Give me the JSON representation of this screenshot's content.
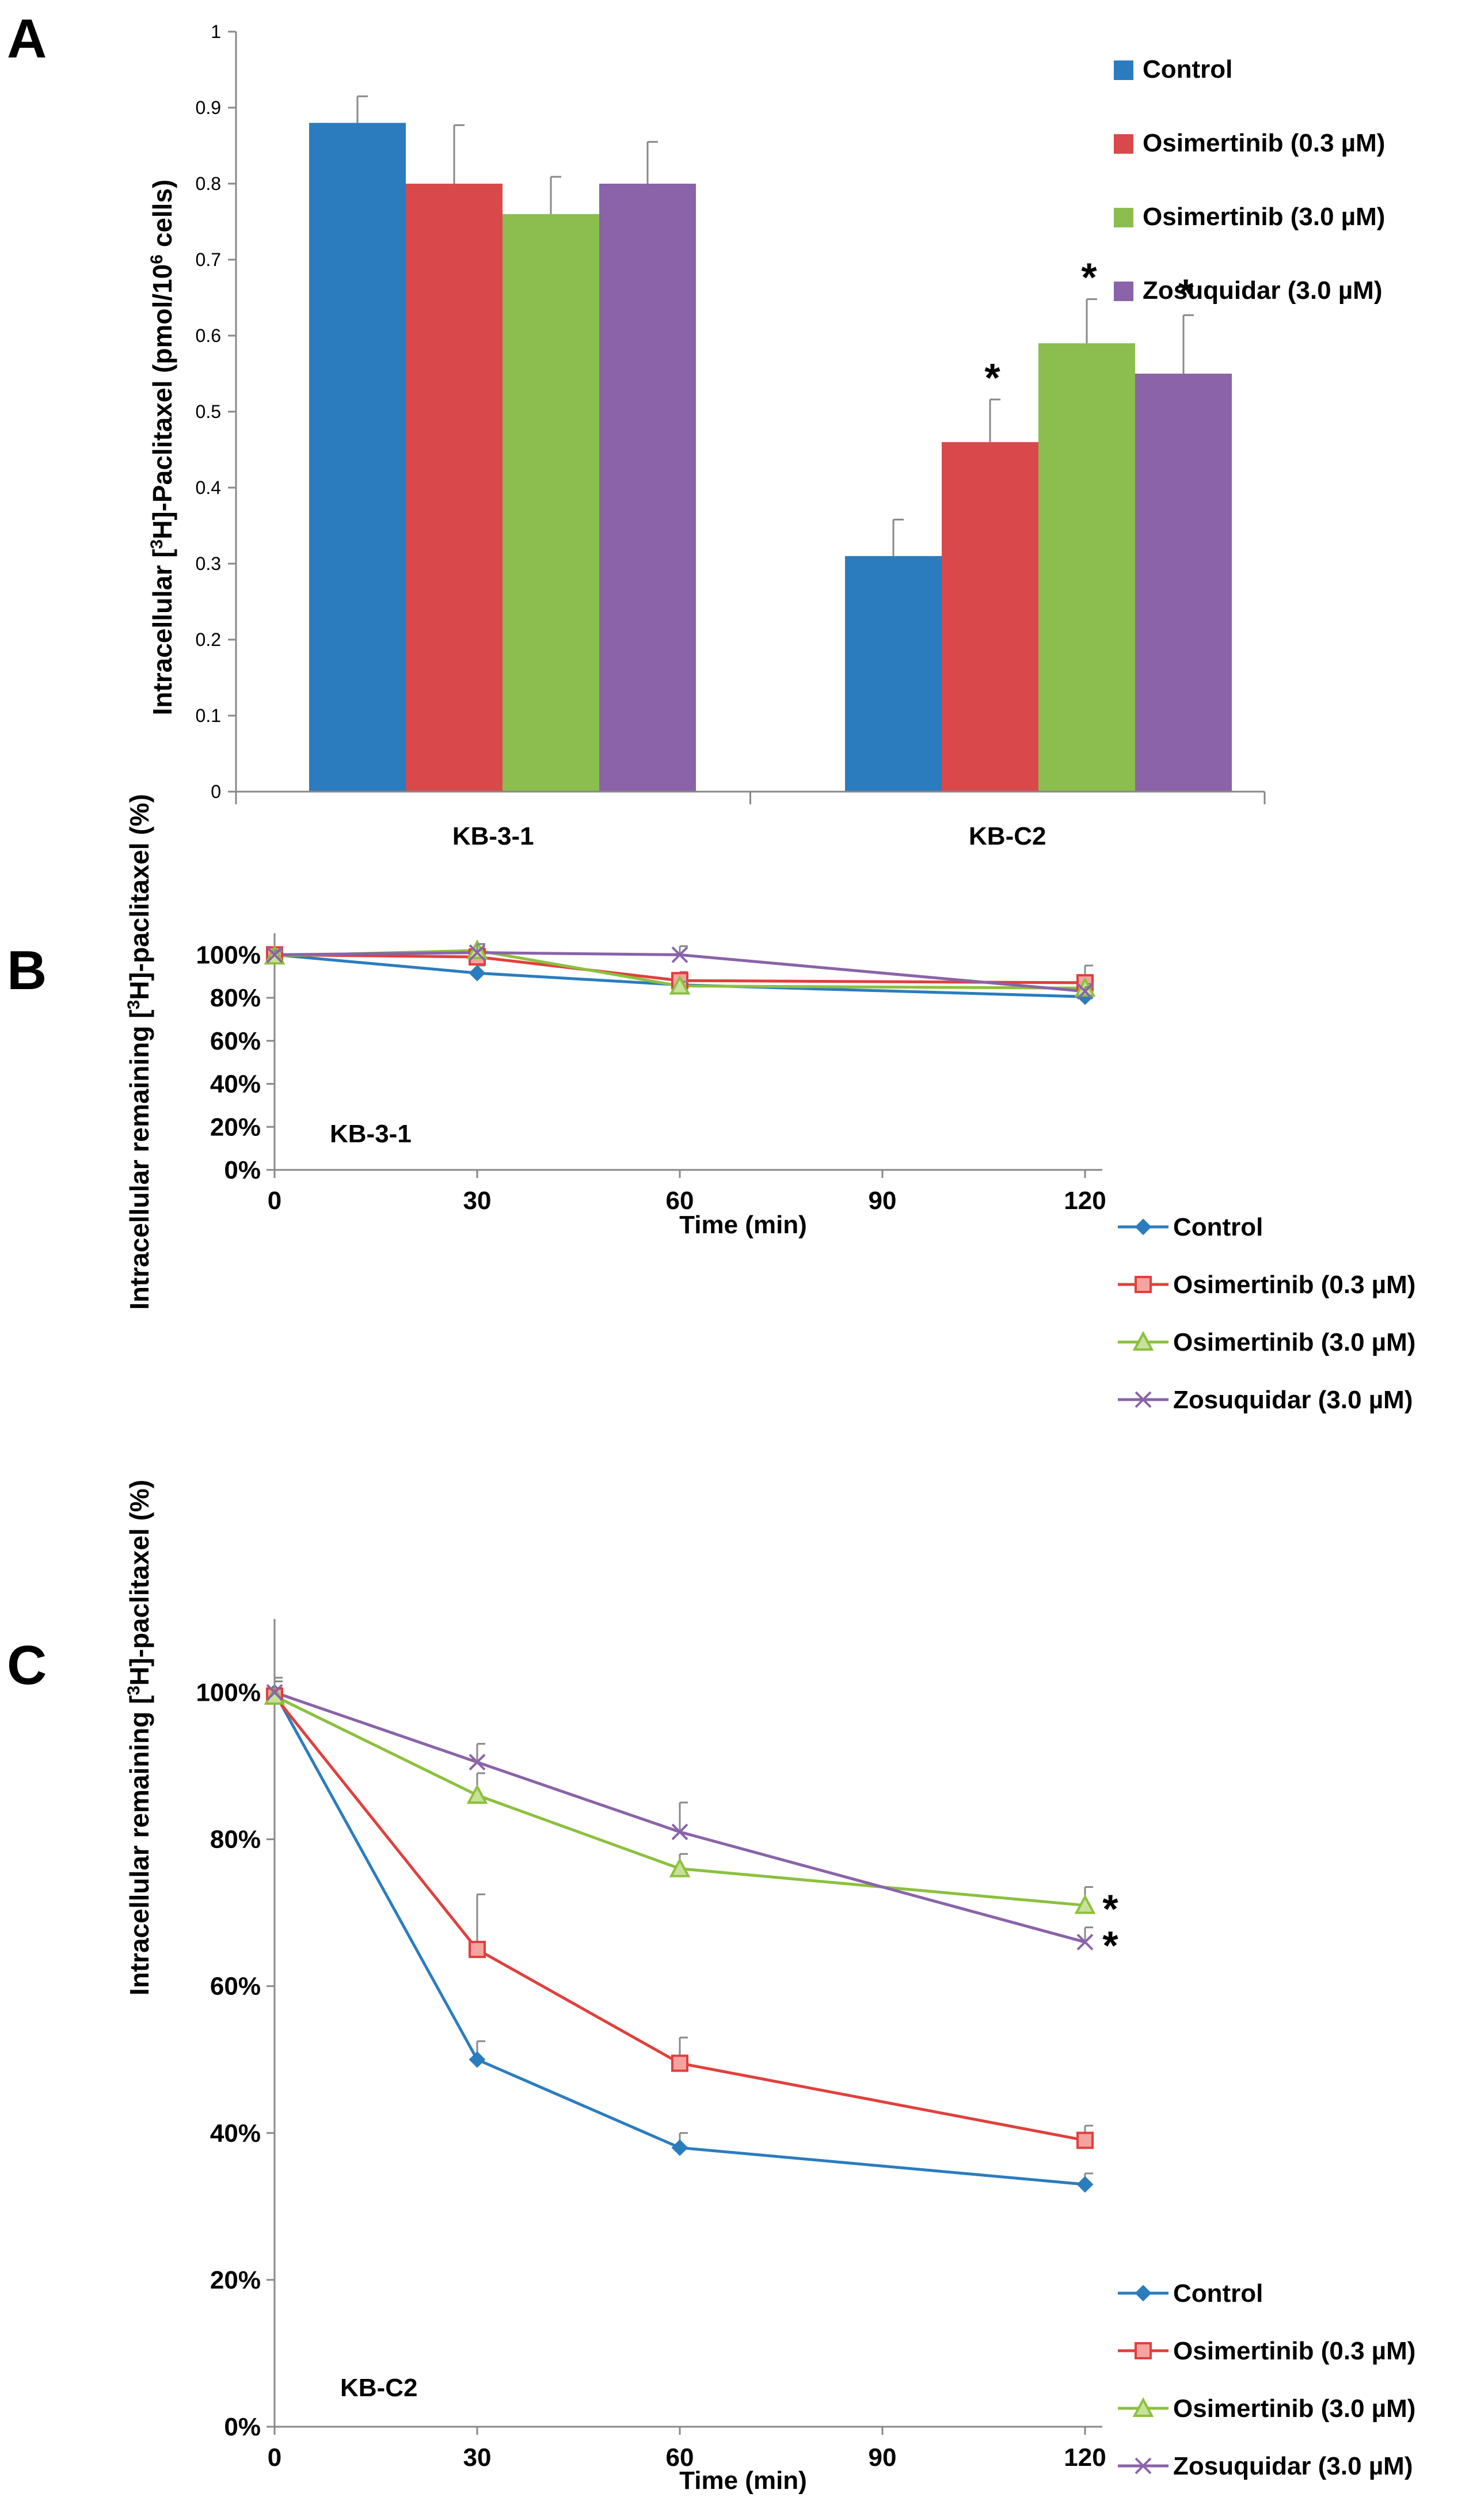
{
  "chart_data": [
    {
      "panel": "A",
      "type": "bar",
      "categories": [
        "KB-3-1",
        "KB-C2"
      ],
      "series": [
        {
          "name": "Control",
          "color": "#2b7cbf",
          "values": [
            0.88,
            0.31
          ],
          "errors": [
            0.035,
            0.048
          ],
          "significant": [
            false,
            false
          ]
        },
        {
          "name": "Osimertinib (0.3 µM)",
          "color": "#d9494b",
          "values": [
            0.8,
            0.46
          ],
          "errors": [
            0.077,
            0.056
          ],
          "significant": [
            false,
            true
          ]
        },
        {
          "name": "Osimertinib (3.0 µM)",
          "color": "#8cbd4f",
          "values": [
            0.76,
            0.59
          ],
          "errors": [
            0.049,
            0.058
          ],
          "significant": [
            false,
            true
          ]
        },
        {
          "name": "Zosuquidar (3.0 µM)",
          "color": "#8a63a8",
          "values": [
            0.8,
            0.55
          ],
          "errors": [
            0.055,
            0.077
          ],
          "significant": [
            false,
            true
          ]
        }
      ],
      "ylabel_pre": "Intracellular [",
      "ylabel_sup1": "3",
      "ylabel_mid": "H]-Paclitaxel (pmol/10",
      "ylabel_sup2": "6",
      "ylabel_post": " cells)",
      "ylim": [
        0,
        1
      ],
      "yticks": [
        "0",
        "0.1",
        "0.2",
        "0.3",
        "0.4",
        "0.5",
        "0.6",
        "0.7",
        "0.8",
        "0.9",
        "1"
      ],
      "star": "*",
      "legend": "top-right"
    },
    {
      "panel": "B",
      "type": "line",
      "annotation": "KB-3-1",
      "x": [
        0,
        30,
        60,
        120
      ],
      "xticks": [
        "0",
        "30",
        "60",
        "90",
        "120"
      ],
      "xlim": [
        0,
        120
      ],
      "yticks": [
        "0%",
        "20%",
        "40%",
        "60%",
        "80%",
        "100%"
      ],
      "ylim": [
        0,
        110
      ],
      "xlabel": "Time (min)",
      "ylabel_pre": "Intracellular remaining [",
      "ylabel_sup": "3",
      "ylabel_post": "H]-paclitaxel (%)",
      "series": [
        {
          "name": "Control",
          "color": "#2b7cbf",
          "marker": "diamond",
          "values": [
            100,
            91.5,
            86,
            80.5
          ],
          "errors": [
            2,
            3.5,
            2,
            1.5
          ]
        },
        {
          "name": "Osimertinib (0.3 µM)",
          "color": "#e0403d",
          "marker": "square",
          "values": [
            100,
            99,
            88,
            87
          ],
          "errors": [
            2,
            4,
            4,
            8
          ]
        },
        {
          "name": "Osimertinib (3.0 µM)",
          "color": "#8cc03e",
          "marker": "triangle",
          "values": [
            99.5,
            102,
            85.5,
            84.5
          ],
          "errors": [
            2,
            3,
            2,
            2
          ]
        },
        {
          "name": "Zosuquidar (3.0 µM)",
          "color": "#8a63a8",
          "marker": "x",
          "values": [
            100,
            101,
            100,
            83
          ],
          "errors": [
            2,
            4,
            4,
            2
          ]
        }
      ],
      "legend": "right"
    },
    {
      "panel": "C",
      "type": "line",
      "annotation": "KB-C2",
      "x": [
        0,
        30,
        60,
        120
      ],
      "xticks": [
        "0",
        "30",
        "60",
        "90",
        "120"
      ],
      "xlim": [
        0,
        120
      ],
      "yticks": [
        "0%",
        "20%",
        "40%",
        "60%",
        "80%",
        "100%"
      ],
      "ylim": [
        0,
        110
      ],
      "xlabel": "Time (min)",
      "ylabel_pre": "Intracellular remaining [",
      "ylabel_sup": "3",
      "ylabel_post": "H]-paclitaxel (%)",
      "series": [
        {
          "name": "Control",
          "color": "#2b7cbf",
          "marker": "diamond",
          "values": [
            100,
            50,
            38,
            33
          ],
          "errors": [
            2,
            2.5,
            2,
            1.5
          ],
          "significant": false
        },
        {
          "name": "Osimertinib (0.3 µM)",
          "color": "#e0403d",
          "marker": "square",
          "values": [
            99.5,
            65,
            49.5,
            39
          ],
          "errors": [
            2,
            7.5,
            3.5,
            2
          ],
          "significant": false
        },
        {
          "name": "Osimertinib (3.0 µM)",
          "color": "#8cc03e",
          "marker": "triangle",
          "values": [
            99.5,
            86,
            76,
            71
          ],
          "errors": [
            2,
            3,
            2,
            2.5
          ],
          "significant": true
        },
        {
          "name": "Zosuquidar (3.0 µM)",
          "color": "#8a63a8",
          "marker": "x",
          "values": [
            100,
            90.5,
            81,
            66
          ],
          "errors": [
            2,
            2.5,
            4,
            2
          ],
          "significant": true
        }
      ],
      "star": "*",
      "legend": "right"
    }
  ],
  "panel_labels": [
    "A",
    "B",
    "C"
  ]
}
